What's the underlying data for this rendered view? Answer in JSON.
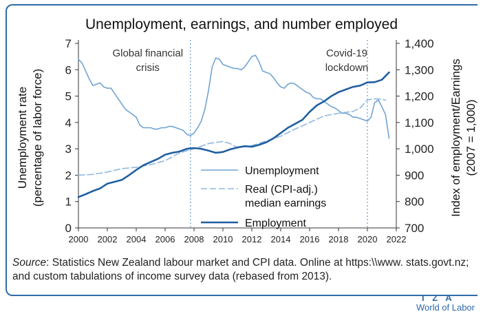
{
  "chart_data": {
    "type": "line",
    "title": "Unemployment, earnings, and number employed",
    "ylabel_left": [
      "Unemployment rate",
      "(percentage of labor force)"
    ],
    "ylabel_right": [
      "Index of employment/Earnings",
      "(2007 = 1,000)"
    ],
    "xlim": [
      2000,
      2022
    ],
    "ylim_left": [
      0,
      7
    ],
    "ylim_right": [
      700,
      1400
    ],
    "x_ticks": [
      "2000",
      "2002",
      "2004",
      "2006",
      "2008",
      "2010",
      "2012",
      "2014",
      "2016",
      "2018",
      "2020",
      "2022"
    ],
    "y_left_ticks": [
      "0",
      "1",
      "2",
      "3",
      "4",
      "5",
      "6",
      "7"
    ],
    "y_right_ticks": [
      "700",
      "800",
      "900",
      "1,000",
      "1,100",
      "1,200",
      "1,300",
      "1,400"
    ],
    "annotations": [
      {
        "text": [
          "Global financial",
          "crisis"
        ],
        "x": 2007.75
      },
      {
        "text": [
          "Covid-19",
          "lockdown"
        ],
        "x": 2020.0
      }
    ],
    "legend": {
      "placement": "center",
      "entries": [
        {
          "label": [
            "Unemployment"
          ],
          "series": "unemployment"
        },
        {
          "label": [
            "Real (CPI-adj.)",
            "median earnings"
          ],
          "series": "earnings"
        },
        {
          "label": [
            "Employment"
          ],
          "series": "employment"
        }
      ]
    },
    "series": [
      {
        "name": "Unemployment",
        "id": "unemployment",
        "axis": "left",
        "color": "#6fa3d3",
        "style": "solid",
        "points": [
          [
            2000,
            6.4
          ],
          [
            2000.25,
            6.25
          ],
          [
            2000.5,
            5.95
          ],
          [
            2000.75,
            5.65
          ],
          [
            2001,
            5.4
          ],
          [
            2001.25,
            5.45
          ],
          [
            2001.5,
            5.5
          ],
          [
            2001.75,
            5.35
          ],
          [
            2002,
            5.3
          ],
          [
            2002.25,
            5.3
          ],
          [
            2002.5,
            5.1
          ],
          [
            2002.75,
            4.9
          ],
          [
            2003,
            4.7
          ],
          [
            2003.25,
            4.5
          ],
          [
            2003.5,
            4.4
          ],
          [
            2003.75,
            4.3
          ],
          [
            2004,
            4.2
          ],
          [
            2004.25,
            3.9
          ],
          [
            2004.5,
            3.8
          ],
          [
            2004.75,
            3.8
          ],
          [
            2005,
            3.8
          ],
          [
            2005.25,
            3.75
          ],
          [
            2005.5,
            3.75
          ],
          [
            2005.75,
            3.8
          ],
          [
            2006,
            3.8
          ],
          [
            2006.25,
            3.85
          ],
          [
            2006.5,
            3.85
          ],
          [
            2006.75,
            3.8
          ],
          [
            2007,
            3.75
          ],
          [
            2007.25,
            3.7
          ],
          [
            2007.5,
            3.55
          ],
          [
            2007.75,
            3.5
          ],
          [
            2008,
            3.6
          ],
          [
            2008.25,
            3.8
          ],
          [
            2008.5,
            4.05
          ],
          [
            2008.75,
            4.5
          ],
          [
            2009,
            5.2
          ],
          [
            2009.25,
            6.1
          ],
          [
            2009.5,
            6.45
          ],
          [
            2009.75,
            6.4
          ],
          [
            2010,
            6.2
          ],
          [
            2010.25,
            6.15
          ],
          [
            2010.5,
            6.1
          ],
          [
            2010.75,
            6.05
          ],
          [
            2011,
            6.05
          ],
          [
            2011.25,
            6.0
          ],
          [
            2011.5,
            6.1
          ],
          [
            2011.75,
            6.3
          ],
          [
            2012,
            6.5
          ],
          [
            2012.25,
            6.55
          ],
          [
            2012.5,
            6.3
          ],
          [
            2012.75,
            5.95
          ],
          [
            2013,
            5.9
          ],
          [
            2013.25,
            5.85
          ],
          [
            2013.5,
            5.7
          ],
          [
            2013.75,
            5.5
          ],
          [
            2014,
            5.35
          ],
          [
            2014.25,
            5.3
          ],
          [
            2014.5,
            5.45
          ],
          [
            2014.75,
            5.5
          ],
          [
            2015,
            5.45
          ],
          [
            2015.25,
            5.35
          ],
          [
            2015.5,
            5.25
          ],
          [
            2015.75,
            5.15
          ],
          [
            2016,
            5.1
          ],
          [
            2016.25,
            4.95
          ],
          [
            2016.5,
            4.9
          ],
          [
            2016.75,
            4.9
          ],
          [
            2017,
            4.8
          ],
          [
            2017.25,
            4.7
          ],
          [
            2017.5,
            4.6
          ],
          [
            2017.75,
            4.55
          ],
          [
            2018,
            4.45
          ],
          [
            2018.25,
            4.35
          ],
          [
            2018.5,
            4.35
          ],
          [
            2018.75,
            4.3
          ],
          [
            2019,
            4.2
          ],
          [
            2019.25,
            4.2
          ],
          [
            2019.5,
            4.15
          ],
          [
            2019.75,
            4.1
          ],
          [
            2020,
            4.05
          ],
          [
            2020.25,
            4.2
          ],
          [
            2020.5,
            4.75
          ],
          [
            2020.75,
            4.85
          ],
          [
            2021,
            4.6
          ],
          [
            2021.25,
            4.3
          ],
          [
            2021.5,
            3.4
          ]
        ]
      },
      {
        "name": "Real (CPI-adj.) median earnings",
        "id": "earnings",
        "axis": "right",
        "color": "#8fb8de",
        "style": "dashed",
        "points": [
          [
            2000,
            900
          ],
          [
            2001,
            903
          ],
          [
            2002,
            912
          ],
          [
            2003,
            925
          ],
          [
            2004,
            930
          ],
          [
            2005,
            940
          ],
          [
            2006,
            955
          ],
          [
            2007,
            985
          ],
          [
            2008,
            1000
          ],
          [
            2009,
            1020
          ],
          [
            2010,
            1028
          ],
          [
            2010.5,
            1020
          ],
          [
            2011,
            1005
          ],
          [
            2012,
            1012
          ],
          [
            2013,
            1030
          ],
          [
            2014,
            1048
          ],
          [
            2015,
            1075
          ],
          [
            2016,
            1100
          ],
          [
            2017,
            1125
          ],
          [
            2018,
            1135
          ],
          [
            2019,
            1142
          ],
          [
            2019.5,
            1155
          ],
          [
            2020,
            1185
          ],
          [
            2020.5,
            1190
          ],
          [
            2021,
            1188
          ],
          [
            2021.25,
            1185
          ]
        ]
      },
      {
        "name": "Employment",
        "id": "employment",
        "axis": "right",
        "color": "#1f5fa0",
        "style": "solid",
        "points": [
          [
            2000,
            817
          ],
          [
            2000.5,
            828
          ],
          [
            2001,
            840
          ],
          [
            2001.5,
            850
          ],
          [
            2002,
            868
          ],
          [
            2002.5,
            875
          ],
          [
            2003,
            882
          ],
          [
            2003.5,
            900
          ],
          [
            2004,
            920
          ],
          [
            2004.5,
            938
          ],
          [
            2005,
            950
          ],
          [
            2005.5,
            962
          ],
          [
            2006,
            978
          ],
          [
            2006.5,
            985
          ],
          [
            2007,
            990
          ],
          [
            2007.5,
            1000
          ],
          [
            2008,
            1003
          ],
          [
            2008.5,
            1000
          ],
          [
            2009,
            993
          ],
          [
            2009.5,
            985
          ],
          [
            2010,
            988
          ],
          [
            2010.5,
            998
          ],
          [
            2011,
            1005
          ],
          [
            2011.5,
            1010
          ],
          [
            2012,
            1008
          ],
          [
            2012.5,
            1015
          ],
          [
            2013,
            1025
          ],
          [
            2013.5,
            1040
          ],
          [
            2014,
            1060
          ],
          [
            2014.5,
            1080
          ],
          [
            2015,
            1095
          ],
          [
            2015.5,
            1110
          ],
          [
            2016,
            1140
          ],
          [
            2016.5,
            1165
          ],
          [
            2017,
            1180
          ],
          [
            2017.5,
            1200
          ],
          [
            2018,
            1215
          ],
          [
            2018.5,
            1225
          ],
          [
            2019,
            1235
          ],
          [
            2019.5,
            1240
          ],
          [
            2020,
            1252
          ],
          [
            2020.5,
            1253
          ],
          [
            2021,
            1262
          ],
          [
            2021.5,
            1290
          ]
        ]
      }
    ]
  },
  "source": {
    "label": "Source",
    "text": ": Statistics New Zealand labour market and CPI data. Online at https:\\\\www. stats.govt.nz; and custom tabulations of income survey data (rebased from 2013)."
  },
  "logo": {
    "iza": "I Z A",
    "wol": "World of Labor",
    "color": "#2f6aa8"
  }
}
